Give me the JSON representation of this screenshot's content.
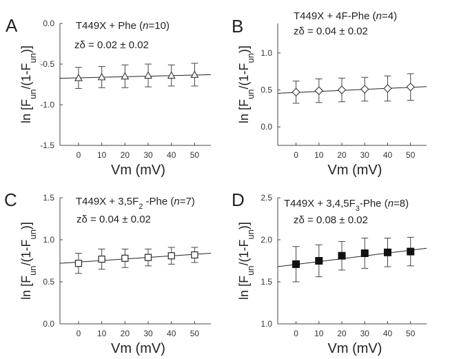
{
  "chart_data": [
    {
      "panel": "A",
      "type": "scatter",
      "title": "T449X + Phe (n=10)",
      "title_parts": [
        "T449X + Phe (",
        "n",
        "=10)"
      ],
      "annotation": "zδ = 0.02 ± 0.02",
      "xlabel": "Vm (mV)",
      "ylabel": "ln [Fun/(1-Fun)]",
      "ylabel_parts": [
        "ln [F",
        "un",
        "/(1-F",
        "un",
        ")]"
      ],
      "xlim": [
        -8,
        57
      ],
      "ylim": [
        -1.5,
        0.0
      ],
      "x_ticks": [
        0,
        10,
        20,
        30,
        40,
        50
      ],
      "x_tick_labels": [
        "0",
        "10",
        "20",
        "30",
        "40",
        "50"
      ],
      "y_ticks": [
        -1.5,
        -1.0,
        -0.5,
        0.0
      ],
      "y_tick_labels": [
        "-1.5",
        "-1.0",
        "-0.5",
        "0.0"
      ],
      "marker": "open-triangle",
      "x": [
        0,
        10,
        20,
        30,
        40,
        50
      ],
      "y": [
        -0.67,
        -0.66,
        -0.65,
        -0.64,
        -0.64,
        -0.63
      ],
      "yerr": [
        0.13,
        0.13,
        0.14,
        0.14,
        0.13,
        0.14
      ],
      "fit": {
        "x": [
          -8,
          57
        ],
        "y": [
          -0.675,
          -0.63
        ]
      }
    },
    {
      "panel": "B",
      "type": "scatter",
      "title": "T449X + 4F-Phe (n=4)",
      "title_parts": [
        "T449X + 4F-Phe (",
        "n",
        "=4)"
      ],
      "annotation": "zδ = 0.04 ± 0.02",
      "xlabel": "Vm (mV)",
      "ylabel": "ln [Fun/(1-Fun)]",
      "ylabel_parts": [
        "ln [F",
        "un",
        "/(1-F",
        "un",
        ")]"
      ],
      "xlim": [
        -8,
        57
      ],
      "ylim": [
        -0.25,
        1.4
      ],
      "x_ticks": [
        0,
        10,
        20,
        30,
        40,
        50
      ],
      "x_tick_labels": [
        "0",
        "10",
        "20",
        "30",
        "40",
        "50"
      ],
      "y_ticks": [
        0.0,
        0.5,
        1.0
      ],
      "y_tick_labels": [
        "0.0",
        "0.5",
        "1.0"
      ],
      "marker": "open-diamond",
      "x": [
        0,
        10,
        20,
        30,
        40,
        50
      ],
      "y": [
        0.47,
        0.49,
        0.5,
        0.51,
        0.52,
        0.54
      ],
      "yerr": [
        0.15,
        0.16,
        0.16,
        0.16,
        0.17,
        0.18
      ],
      "fit": {
        "x": [
          -8,
          57
        ],
        "y": [
          0.455,
          0.545
        ]
      }
    },
    {
      "panel": "C",
      "type": "scatter",
      "title": "T449X + 3,5F2-Phe (n=7)",
      "title_parts": [
        "T449X + 3,5F",
        "2",
        " -Phe (",
        "n",
        "=7)"
      ],
      "annotation": "zδ = 0.04 ± 0.02",
      "xlabel": "Vm (mV)",
      "ylabel": "ln [Fun/(1-Fun)]",
      "ylabel_parts": [
        "ln [F",
        "un",
        "/(1-F",
        "un",
        ")]"
      ],
      "xlim": [
        -8,
        57
      ],
      "ylim": [
        0.0,
        1.5
      ],
      "x_ticks": [
        0,
        10,
        20,
        30,
        40,
        50
      ],
      "x_tick_labels": [
        "0",
        "10",
        "20",
        "30",
        "40",
        "50"
      ],
      "y_ticks": [
        0.0,
        0.5,
        1.0,
        1.5
      ],
      "y_tick_labels": [
        "0.0",
        "0.5",
        "1.0",
        "1.5"
      ],
      "marker": "open-square",
      "x": [
        0,
        10,
        20,
        30,
        40,
        50
      ],
      "y": [
        0.72,
        0.77,
        0.78,
        0.79,
        0.81,
        0.82
      ],
      "yerr": [
        0.12,
        0.12,
        0.11,
        0.1,
        0.1,
        0.09
      ],
      "fit": {
        "x": [
          -8,
          57
        ],
        "y": [
          0.72,
          0.84
        ]
      }
    },
    {
      "panel": "D",
      "type": "scatter",
      "title": "T449X + 3,4,5F3-Phe (n=8)",
      "title_parts": [
        "T449X + 3,4,5F",
        "3",
        "-Phe (",
        "n",
        "=8)"
      ],
      "annotation": "zδ = 0.08 ± 0.02",
      "xlabel": "Vm (mV)",
      "ylabel": "ln [Fun/(1-Fun)]",
      "ylabel_parts": [
        "ln [F",
        "un",
        "/(1-F",
        "un",
        ")]"
      ],
      "xlim": [
        -8,
        57
      ],
      "ylim": [
        1.0,
        2.5
      ],
      "x_ticks": [
        0,
        10,
        20,
        30,
        40,
        50
      ],
      "x_tick_labels": [
        "0",
        "10",
        "20",
        "30",
        "40",
        "50"
      ],
      "y_ticks": [
        1.0,
        1.5,
        2.0,
        2.5
      ],
      "y_tick_labels": [
        "1.0",
        "1.5",
        "2.0",
        "2.5"
      ],
      "marker": "filled-square",
      "x": [
        0,
        10,
        20,
        30,
        40,
        50
      ],
      "y": [
        1.71,
        1.75,
        1.81,
        1.84,
        1.85,
        1.86
      ],
      "yerr": [
        0.21,
        0.19,
        0.17,
        0.18,
        0.17,
        0.17
      ],
      "fit": {
        "x": [
          -8,
          57
        ],
        "y": [
          1.68,
          1.9
        ]
      }
    }
  ]
}
